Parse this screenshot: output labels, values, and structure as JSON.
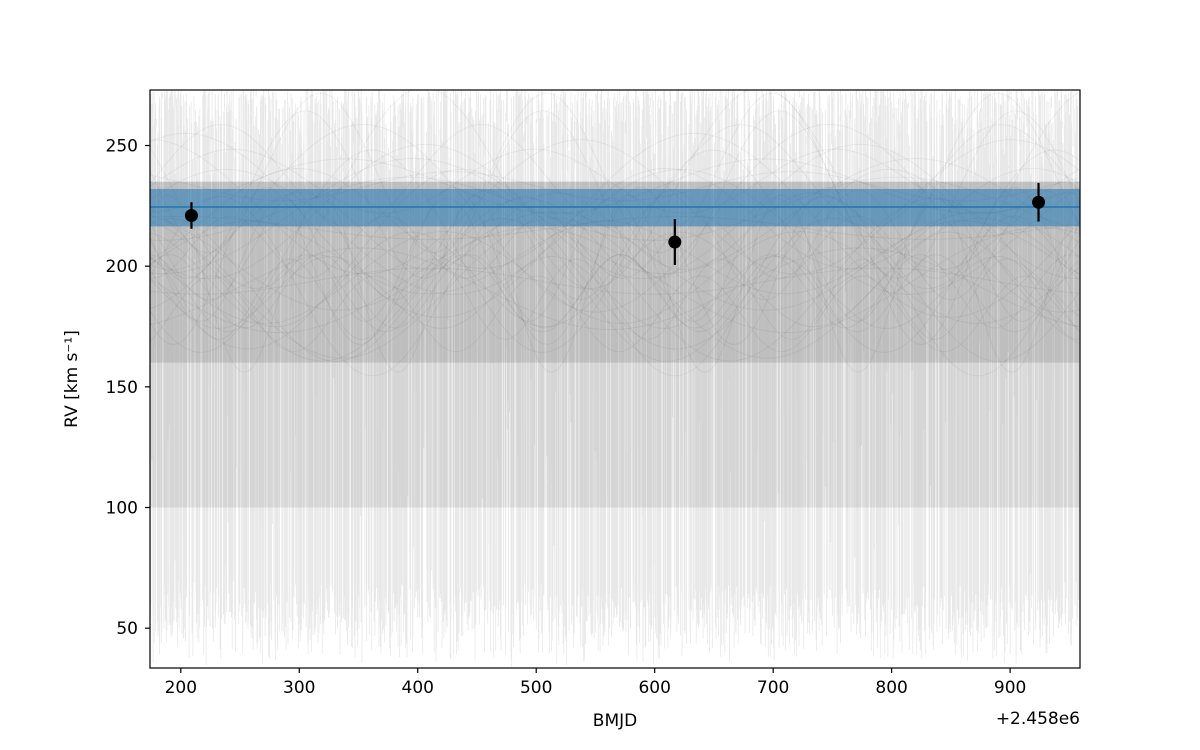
{
  "chart_data": {
    "type": "scatter",
    "xlabel": "BMJD",
    "ylabel": "RV [km s⁻¹]",
    "x_offset_label": "+2.458e6",
    "xlim": [
      174,
      959
    ],
    "ylim": [
      33.5,
      273
    ],
    "x_ticks": [
      200,
      300,
      400,
      500,
      600,
      700,
      800,
      900
    ],
    "y_ticks": [
      50,
      100,
      150,
      200,
      250
    ],
    "x_tick_labels": [
      "200",
      "300",
      "400",
      "500",
      "600",
      "700",
      "800",
      "900"
    ],
    "y_tick_labels": [
      "50",
      "100",
      "150",
      "200",
      "250"
    ],
    "grid": false,
    "series": [
      {
        "x": [
          209,
          617,
          924
        ],
        "y": [
          221,
          210,
          226.5
        ],
        "yerr": [
          5.5,
          9.5,
          8.0
        ],
        "color": "#000000"
      }
    ],
    "model": {
      "median": 224.5,
      "band": [
        216.5,
        232.0
      ],
      "color": "#1f77b4"
    },
    "posterior_samples": {
      "color": "#000000"
    }
  }
}
